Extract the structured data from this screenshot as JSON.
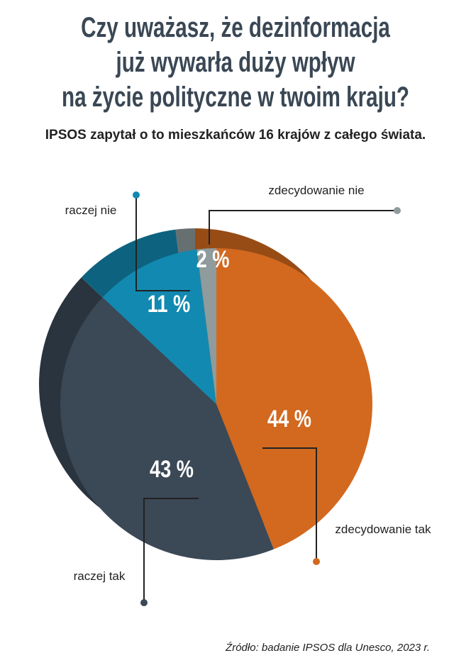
{
  "chart_data": {
    "type": "pie",
    "title": [
      "Czy uważasz, że dezinformacja",
      "już wywarła duży wpływ",
      "na życie polityczne w twoim kraju?"
    ],
    "subtitle": "IPSOS zapytał o to mieszkańców 16 krajów z całego świata.",
    "source": "Źródło: badanie IPSOS dla Unesco, 2023 r.",
    "categories": [
      "zdecydowanie tak",
      "raczej tak",
      "raczej nie",
      "zdecydowanie nie"
    ],
    "values": [
      44,
      43,
      11,
      2
    ],
    "value_labels": [
      "44 %",
      "43 %",
      "11 %",
      "2 %"
    ],
    "colors": [
      "#d2691f",
      "#3b4856",
      "#1289b0",
      "#8f9b9c"
    ]
  }
}
